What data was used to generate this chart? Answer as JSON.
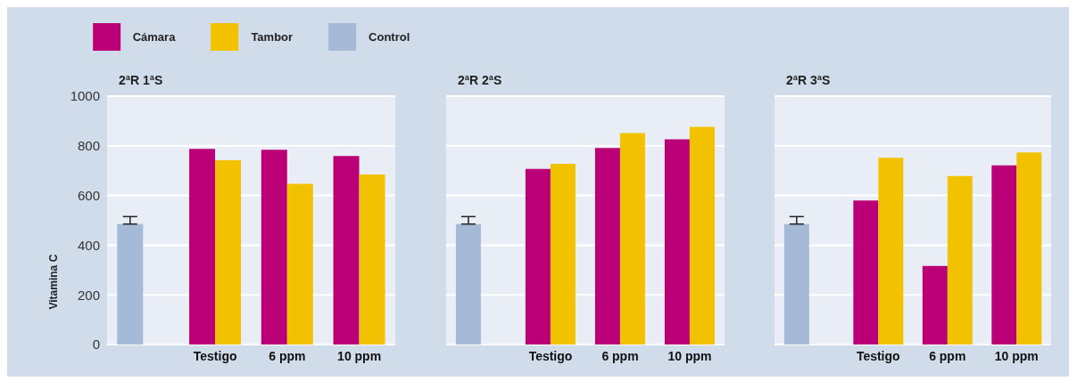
{
  "chart_data": [
    {
      "type": "bar",
      "title": "2ªR 1ªS",
      "ylabel": "Vitamina C",
      "categories": [
        null,
        "Testigo",
        "6 ppm",
        "10 ppm"
      ],
      "ylim": [
        0,
        1000
      ],
      "yticks": [
        0,
        200,
        400,
        600,
        800,
        1000
      ],
      "grid": "y",
      "legend": "top",
      "series": [
        {
          "name": "Cámara",
          "color": "#bb0077",
          "values": [
            null,
            788,
            784,
            759
          ]
        },
        {
          "name": "Tambor",
          "color": "#f2c200",
          "values": [
            null,
            742,
            647,
            685
          ]
        },
        {
          "name": "Control",
          "color": "#a5bad7",
          "values": [
            485,
            null,
            null,
            null
          ],
          "errors": [
            [
              485,
              515
            ],
            null,
            null,
            null
          ]
        }
      ]
    },
    {
      "type": "bar",
      "title": "2ªR 2ªS",
      "categories": [
        null,
        "Testigo",
        "6 ppm",
        "10 ppm"
      ],
      "ylim": [
        0,
        1000
      ],
      "yticks": [
        0,
        200,
        400,
        600,
        800,
        1000
      ],
      "grid": "y",
      "tick_labels": "x",
      "series": [
        {
          "color": "#bb0077",
          "values": [
            null,
            707,
            791,
            826
          ]
        },
        {
          "color": "#f2c200",
          "values": [
            null,
            728,
            851,
            876
          ]
        },
        {
          "color": "#a5bad7",
          "values": [
            485,
            null,
            null,
            null
          ],
          "errors": [
            [
              485,
              515
            ],
            null,
            null,
            null
          ]
        }
      ]
    },
    {
      "type": "bar",
      "title": "2ªR 3ªS",
      "categories": [
        null,
        "Testigo",
        "6 ppm",
        "10 ppm"
      ],
      "ylim": [
        0,
        1000
      ],
      "yticks": [
        0,
        200,
        400,
        600,
        800,
        1000
      ],
      "grid": "y",
      "tick_labels": "x",
      "series": [
        {
          "color": "#bb0077",
          "values": [
            null,
            580,
            316,
            721
          ]
        },
        {
          "color": "#f2c200",
          "values": [
            null,
            752,
            678,
            773
          ]
        },
        {
          "color": "#a5bad7",
          "values": [
            485,
            null,
            null,
            null
          ],
          "errors": [
            [
              485,
              515
            ],
            null,
            null,
            null
          ]
        }
      ]
    }
  ]
}
